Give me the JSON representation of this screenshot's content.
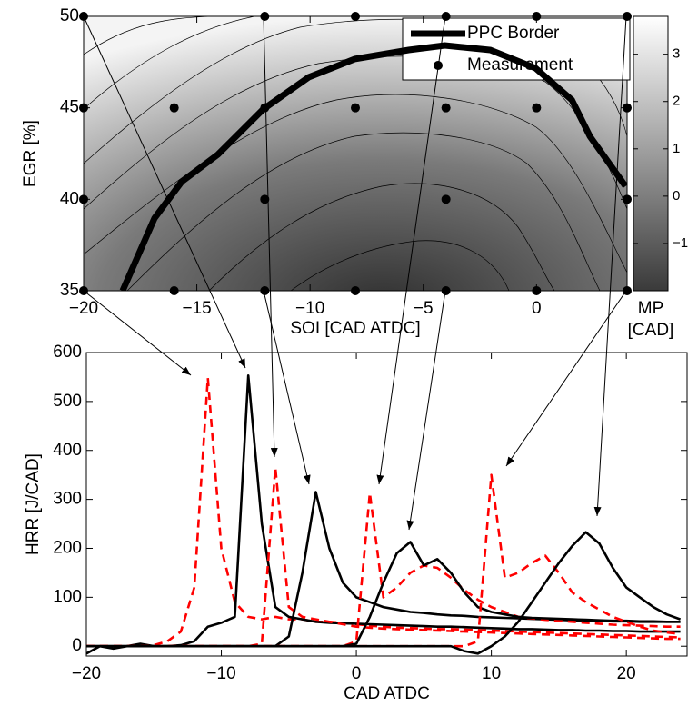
{
  "chart_data": [
    {
      "type": "contour",
      "xlabel": "SOI [CAD ATDC]",
      "ylabel": "EGR [%]",
      "xlim": [
        -20,
        4
      ],
      "ylim": [
        35,
        50
      ],
      "xticks": [
        {
          "value": -20,
          "label": "−20"
        },
        {
          "value": -15,
          "label": "−15"
        },
        {
          "value": -10,
          "label": "−10"
        },
        {
          "value": -5,
          "label": "−5"
        },
        0
      ],
      "yticks": [
        35,
        40,
        45,
        50
      ],
      "colorbar_label": [
        "MP",
        "[CAD]"
      ],
      "clim": [
        -2,
        3.8
      ],
      "colorbar_ticks": [
        3,
        2,
        1,
        0,
        {
          "value": -1,
          "label": "−1"
        }
      ],
      "legend": "upper right",
      "series": [
        {
          "name": "PPC Border",
          "kind": "line",
          "color": "#000000",
          "x": [
            -18.28,
            -16.87,
            -15.67,
            -14.07,
            -12.06,
            -10.06,
            -8.02,
            -5.65,
            -4.05,
            -2.04,
            -0.04,
            1.56,
            2.36,
            3.93
          ],
          "values": [
            35,
            38.97,
            40.96,
            42.45,
            44.93,
            46.67,
            47.67,
            48.16,
            48.41,
            48.16,
            47.17,
            45.43,
            43.44,
            40.71
          ]
        },
        {
          "name": "Measurement",
          "kind": "points",
          "color": "#000000",
          "x": [
            -20,
            -12,
            -8,
            -4,
            0,
            4,
            -20,
            -16,
            -12,
            -8,
            -4,
            0,
            4,
            -20,
            -12,
            -4,
            4,
            -20,
            -16,
            -12,
            -8,
            -4,
            0,
            4
          ],
          "values": [
            50,
            50,
            50,
            50,
            50,
            50,
            45,
            45,
            45,
            45,
            45,
            45,
            45,
            40,
            40,
            40,
            40,
            35,
            35,
            35,
            35,
            35,
            35,
            35
          ]
        }
      ]
    },
    {
      "type": "line",
      "xlabel": "CAD ATDC",
      "ylabel": "HRR [J/CAD]",
      "xlim": [
        -20,
        24.5
      ],
      "ylim": [
        -20,
        600
      ],
      "xticks": [
        {
          "value": -20,
          "label": "−20"
        },
        {
          "value": -10,
          "label": "−10"
        },
        0,
        10,
        20
      ],
      "yticks": [
        0,
        100,
        200,
        300,
        400,
        500,
        600
      ],
      "x": [
        -20,
        -19,
        -18,
        -17,
        -16,
        -15,
        -14,
        -13,
        -12,
        -11,
        -10,
        -9,
        -8,
        -7,
        -6,
        -5,
        -4,
        -3,
        -2,
        -1,
        0,
        1,
        2,
        3,
        4,
        5,
        6,
        7,
        8,
        9,
        10,
        11,
        12,
        13,
        14,
        15,
        16,
        17,
        18,
        19,
        20,
        21,
        22,
        23,
        24
      ],
      "series": [
        {
          "color": "#ff0000",
          "dashed": true,
          "values": [
            0,
            0,
            0,
            0,
            0,
            2,
            10,
            30,
            120,
            548,
            200,
            90,
            60,
            55,
            60,
            55,
            55,
            50,
            50,
            48,
            45,
            42,
            40,
            38,
            37,
            36,
            35,
            35,
            34,
            33,
            32,
            31,
            30,
            29,
            28,
            27,
            26,
            25,
            24,
            23,
            22,
            21,
            20,
            19,
            18
          ]
        },
        {
          "color": "#000000",
          "dashed": false,
          "values": [
            -15,
            0,
            -5,
            0,
            5,
            0,
            0,
            2,
            10,
            40,
            48,
            60,
            553,
            250,
            80,
            60,
            55,
            50,
            48,
            47,
            46,
            45,
            44,
            43,
            42,
            41,
            40,
            40,
            39,
            38,
            37,
            36,
            35,
            35,
            34,
            33,
            33,
            32,
            32,
            31,
            31,
            30,
            30,
            30,
            30
          ]
        },
        {
          "color": "#ff0000",
          "dashed": true,
          "values": [
            0,
            0,
            0,
            0,
            0,
            0,
            0,
            0,
            0,
            0,
            0,
            0,
            0,
            5,
            365,
            80,
            60,
            55,
            50,
            45,
            40,
            38,
            36,
            35,
            34,
            33,
            32,
            31,
            30,
            29,
            28,
            27,
            26,
            25,
            24,
            23,
            22,
            21,
            20,
            19,
            18,
            17,
            16,
            15,
            15
          ]
        },
        {
          "color": "#000000",
          "dashed": false,
          "values": [
            0,
            0,
            0,
            0,
            0,
            0,
            0,
            0,
            0,
            0,
            0,
            0,
            0,
            0,
            0,
            20,
            150,
            315,
            200,
            130,
            100,
            90,
            80,
            75,
            70,
            68,
            65,
            63,
            62,
            60,
            59,
            58,
            57,
            56,
            55,
            54,
            53,
            52,
            52,
            51,
            51,
            50,
            50,
            50,
            50
          ]
        },
        {
          "color": "#ff0000",
          "dashed": true,
          "values": [
            0,
            0,
            0,
            0,
            0,
            0,
            0,
            0,
            0,
            0,
            0,
            0,
            0,
            0,
            0,
            0,
            0,
            0,
            0,
            0,
            10,
            313,
            100,
            120,
            150,
            165,
            160,
            140,
            115,
            95,
            80,
            70,
            60,
            57,
            54,
            52,
            50,
            48,
            46,
            44,
            43,
            42,
            41,
            40,
            40
          ]
        },
        {
          "color": "#000000",
          "dashed": false,
          "values": [
            0,
            0,
            0,
            0,
            0,
            0,
            0,
            0,
            0,
            0,
            0,
            0,
            0,
            0,
            0,
            0,
            0,
            0,
            0,
            0,
            5,
            60,
            130,
            190,
            213,
            165,
            178,
            150,
            110,
            80,
            70,
            65,
            60,
            58,
            57,
            56,
            55,
            54,
            53,
            52,
            52,
            51,
            51,
            50,
            50
          ]
        },
        {
          "color": "#ff0000",
          "dashed": true,
          "values": [
            0,
            0,
            0,
            0,
            0,
            0,
            0,
            0,
            0,
            0,
            0,
            0,
            0,
            0,
            0,
            0,
            0,
            0,
            0,
            0,
            0,
            0,
            0,
            0,
            0,
            0,
            0,
            0,
            0,
            10,
            350,
            140,
            150,
            170,
            185,
            150,
            110,
            90,
            75,
            60,
            50,
            40,
            32,
            28,
            25
          ]
        },
        {
          "color": "#000000",
          "dashed": false,
          "values": [
            0,
            0,
            0,
            0,
            0,
            0,
            0,
            0,
            0,
            0,
            0,
            0,
            0,
            0,
            0,
            0,
            0,
            0,
            0,
            0,
            0,
            0,
            0,
            0,
            0,
            0,
            0,
            0,
            -10,
            -15,
            0,
            20,
            50,
            90,
            130,
            170,
            205,
            233,
            210,
            160,
            120,
            100,
            80,
            65,
            55
          ]
        }
      ]
    }
  ]
}
